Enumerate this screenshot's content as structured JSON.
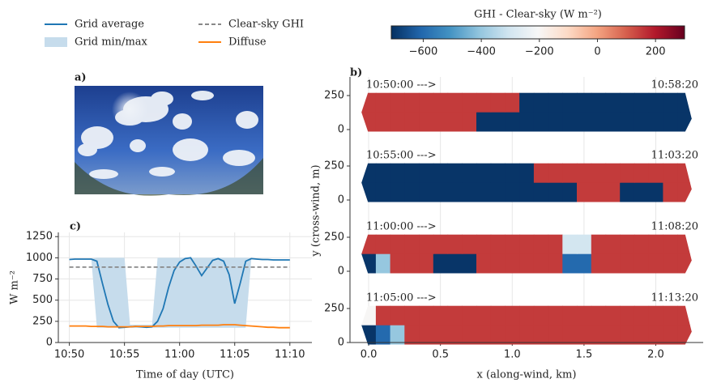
{
  "image_panel": {
    "label": "a)"
  },
  "chart_data": [
    {
      "type": "line",
      "label": "c)",
      "xlabel": "Time of day (UTC)",
      "ylabel": "W m⁻²",
      "xlim": [
        "10:49:00",
        "11:12:00"
      ],
      "xticks": [
        "10:50",
        "10:55",
        "11:00",
        "11:05",
        "11:10"
      ],
      "ylim": [
        0,
        1300
      ],
      "yticks": [
        0,
        250,
        500,
        750,
        1000,
        1250
      ],
      "grid": true,
      "legend": "top",
      "x": [
        "10:50:00",
        "10:50:30",
        "10:51:00",
        "10:51:30",
        "10:52:00",
        "10:52:30",
        "10:53:00",
        "10:53:30",
        "10:54:00",
        "10:54:30",
        "10:55:00",
        "10:55:30",
        "10:56:00",
        "10:56:30",
        "10:57:00",
        "10:57:30",
        "10:58:00",
        "10:58:30",
        "10:59:00",
        "10:59:30",
        "11:00:00",
        "11:00:30",
        "11:01:00",
        "11:01:30",
        "11:02:00",
        "11:02:30",
        "11:03:00",
        "11:03:30",
        "11:04:00",
        "11:04:30",
        "11:05:00",
        "11:05:30",
        "11:06:00",
        "11:06:30",
        "11:07:00",
        "11:07:30",
        "11:08:00",
        "11:08:30",
        "11:09:00",
        "11:09:30",
        "11:10:00"
      ],
      "series": [
        {
          "name": "Grid average",
          "kind": "line",
          "color": "#1f77b4",
          "values": [
            980,
            985,
            985,
            985,
            985,
            960,
            700,
            450,
            250,
            175,
            180,
            185,
            190,
            185,
            180,
            185,
            250,
            400,
            650,
            850,
            950,
            990,
            1000,
            900,
            790,
            880,
            970,
            990,
            960,
            800,
            460,
            700,
            960,
            990,
            985,
            980,
            980,
            975,
            975,
            975,
            975
          ]
        },
        {
          "name": "Grid min/max",
          "kind": "band",
          "color": "#c6dcec",
          "lower": [
            975,
            980,
            980,
            980,
            980,
            175,
            175,
            175,
            175,
            175,
            175,
            175,
            175,
            175,
            175,
            175,
            175,
            175,
            175,
            175,
            175,
            175,
            175,
            175,
            175,
            175,
            175,
            175,
            175,
            175,
            175,
            175,
            175,
            985,
            980,
            975,
            975,
            970,
            970,
            970,
            970
          ],
          "upper": [
            985,
            990,
            990,
            990,
            990,
            1000,
            1000,
            1000,
            1000,
            1000,
            1000,
            210,
            210,
            210,
            210,
            210,
            1000,
            1000,
            1000,
            1000,
            1000,
            1000,
            1000,
            1000,
            1000,
            1000,
            1000,
            1000,
            1000,
            1000,
            1000,
            1000,
            1000,
            995,
            990,
            990,
            985,
            985,
            980,
            980,
            980
          ]
        },
        {
          "name": "Clear-sky GHI",
          "kind": "line",
          "dash": true,
          "color": "#888888",
          "values": [
            890,
            890,
            890,
            890,
            890,
            890,
            890,
            890,
            890,
            890,
            890,
            890,
            890,
            890,
            890,
            890,
            890,
            890,
            890,
            890,
            890,
            890,
            890,
            890,
            890,
            890,
            890,
            890,
            890,
            890,
            890,
            890,
            890,
            890,
            890,
            890,
            890,
            890,
            890,
            890,
            890
          ]
        },
        {
          "name": "Diffuse",
          "kind": "line",
          "color": "#ff7f0e",
          "values": [
            195,
            195,
            195,
            195,
            190,
            190,
            190,
            185,
            185,
            185,
            185,
            185,
            190,
            190,
            190,
            190,
            195,
            195,
            200,
            200,
            200,
            200,
            200,
            200,
            205,
            205,
            205,
            205,
            210,
            210,
            210,
            205,
            200,
            195,
            190,
            185,
            180,
            180,
            175,
            175,
            175
          ]
        }
      ]
    },
    {
      "type": "heatmap",
      "label": "b)",
      "xlabel": "x (along-wind, km)",
      "ylabel": "y (cross-wind, m)",
      "xlim": [
        -0.13,
        2.33
      ],
      "xticks": [
        {
          "value": 0,
          "label": "0.0"
        },
        0.5,
        {
          "value": 1,
          "label": "1.0"
        },
        1.5,
        {
          "value": 2,
          "label": "2.0"
        }
      ],
      "yticks": [
        0,
        250
      ],
      "grid": true,
      "cmap": "RdBu_r",
      "colorbar": {
        "label": "GHI - Clear-sky (W m⁻²)",
        "clim": [
          -710,
          300
        ],
        "ticks": [
          {
            "value": -600,
            "label": "−600"
          },
          {
            "value": -400,
            "label": "−400"
          },
          {
            "value": -200,
            "label": "−200"
          },
          0,
          200
        ]
      },
      "x_edges": [
        -0.05,
        0.05,
        0.15,
        0.25,
        0.35,
        0.45,
        0.55,
        0.65,
        0.75,
        0.85,
        0.95,
        1.05,
        1.15,
        1.25,
        1.35,
        1.45,
        1.55,
        1.65,
        1.75,
        1.85,
        1.95,
        2.05,
        2.15,
        2.25
      ],
      "y_edges": [
        -15,
        130,
        270
      ],
      "panels": [
        {
          "start": "10:50:00 --->",
          "end": "10:58:20",
          "z": [
            [
              150,
              150,
              150,
              150,
              150,
              150,
              150,
              150,
              -700,
              -700,
              -700,
              -700,
              -700,
              -700,
              -700,
              -700,
              -700,
              -700,
              -700,
              -700,
              -700,
              -700,
              -700
            ],
            [
              150,
              150,
              150,
              150,
              150,
              150,
              150,
              150,
              150,
              150,
              150,
              -700,
              -700,
              -700,
              -700,
              -700,
              -700,
              -700,
              -700,
              -700,
              -700,
              -700,
              -700
            ]
          ]
        },
        {
          "start": "10:55:00 --->",
          "end": "11:03:20",
          "z": [
            [
              -700,
              -700,
              -700,
              -700,
              -700,
              -700,
              -700,
              -700,
              -700,
              -700,
              -700,
              -700,
              -700,
              -700,
              -700,
              150,
              150,
              150,
              -700,
              -700,
              -700,
              150,
              150
            ],
            [
              -700,
              -700,
              -700,
              -700,
              -700,
              -700,
              -700,
              -700,
              -700,
              -700,
              -700,
              -700,
              150,
              150,
              150,
              150,
              150,
              150,
              150,
              150,
              150,
              150,
              150
            ]
          ]
        },
        {
          "start": "11:00:00 --->",
          "end": "11:08:20",
          "z": [
            [
              -700,
              -400,
              150,
              150,
              150,
              -700,
              -700,
              -700,
              150,
              150,
              150,
              150,
              150,
              150,
              -600,
              -600,
              150,
              150,
              150,
              150,
              150,
              150,
              150
            ],
            [
              150,
              150,
              150,
              150,
              150,
              150,
              150,
              150,
              150,
              150,
              150,
              150,
              150,
              150,
              -300,
              -300,
              150,
              150,
              150,
              150,
              150,
              150,
              150
            ]
          ]
        },
        {
          "start": "11:05:00 --->",
          "end": "11:13:20",
          "z": [
            [
              -700,
              -600,
              -400,
              150,
              150,
              150,
              150,
              150,
              150,
              150,
              150,
              150,
              150,
              150,
              150,
              150,
              150,
              150,
              150,
              150,
              150,
              150,
              150
            ],
            [
              -200,
              150,
              150,
              150,
              150,
              150,
              150,
              150,
              150,
              150,
              150,
              150,
              150,
              150,
              150,
              150,
              150,
              150,
              150,
              150,
              150,
              150,
              150
            ]
          ]
        }
      ]
    }
  ]
}
